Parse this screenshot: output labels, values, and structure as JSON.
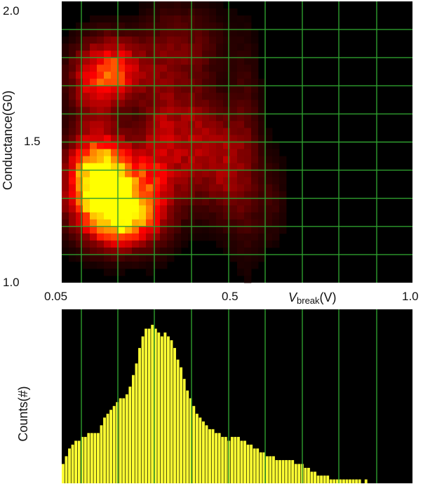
{
  "chart_data": [
    {
      "type": "heatmap",
      "title": "",
      "ylabel": "Conductance(G0)",
      "xlabel_main": "V",
      "xlabel_sub": "break",
      "xlabel_unit": "(V)",
      "xlim": [
        0.05,
        1.0
      ],
      "ylim": [
        1.0,
        2.0
      ],
      "x_tick_labels": [
        "0.05",
        "0.5",
        "1.0"
      ],
      "y_tick_labels": [
        "2.0",
        "1.5",
        "1.0"
      ],
      "grid": true,
      "colormap": "black-red-yellow",
      "hotspots": [
        {
          "x": 0.19,
          "y": 1.32,
          "sx": 0.075,
          "sy": 0.11,
          "amp": 1.0
        },
        {
          "x": 0.14,
          "y": 1.4,
          "sx": 0.05,
          "sy": 0.1,
          "amp": 0.55
        },
        {
          "x": 0.22,
          "y": 1.22,
          "sx": 0.06,
          "sy": 0.06,
          "amp": 0.5
        },
        {
          "x": 0.2,
          "y": 1.75,
          "sx": 0.05,
          "sy": 0.08,
          "amp": 0.55
        },
        {
          "x": 0.13,
          "y": 1.72,
          "sx": 0.05,
          "sy": 0.1,
          "amp": 0.35
        },
        {
          "x": 0.32,
          "y": 1.5,
          "sx": 0.04,
          "sy": 0.2,
          "amp": 0.35
        },
        {
          "x": 0.41,
          "y": 1.5,
          "sx": 0.04,
          "sy": 0.15,
          "amp": 0.35
        },
        {
          "x": 0.49,
          "y": 1.42,
          "sx": 0.035,
          "sy": 0.14,
          "amp": 0.3
        },
        {
          "x": 0.55,
          "y": 1.45,
          "sx": 0.03,
          "sy": 0.25,
          "amp": 0.2
        },
        {
          "x": 0.38,
          "y": 1.85,
          "sx": 0.08,
          "sy": 0.1,
          "amp": 0.2
        },
        {
          "x": 0.62,
          "y": 1.3,
          "sx": 0.03,
          "sy": 0.12,
          "amp": 0.12
        }
      ]
    },
    {
      "type": "bar",
      "title": "",
      "ylabel": "Counts(#)",
      "xlim": [
        0.05,
        1.0
      ],
      "bar_color": "#ffff33",
      "values": [
        5,
        7,
        9,
        10,
        11,
        11,
        12,
        12,
        13,
        13,
        13,
        13,
        15,
        17,
        18,
        19,
        20,
        21,
        22,
        22,
        23,
        25,
        28,
        31,
        35,
        38,
        40,
        40,
        41,
        40,
        39,
        38,
        39,
        38,
        37,
        35,
        32,
        30,
        27,
        24,
        22,
        20,
        18,
        17,
        16,
        15,
        14,
        14,
        13,
        13,
        12,
        12,
        11,
        12,
        12,
        12,
        11,
        11,
        10,
        10,
        9,
        9,
        8,
        8,
        7,
        7,
        7,
        6,
        6,
        6,
        6,
        6,
        6,
        5,
        5,
        5,
        4,
        4,
        3,
        3,
        2,
        2,
        2,
        2,
        1,
        1,
        1,
        1,
        1,
        1,
        1,
        1,
        1,
        1,
        0,
        1,
        0,
        0,
        0,
        0,
        0,
        0,
        0,
        0,
        0,
        0,
        0,
        0,
        0,
        0
      ],
      "ylim": [
        0,
        45
      ],
      "grid": true
    }
  ]
}
